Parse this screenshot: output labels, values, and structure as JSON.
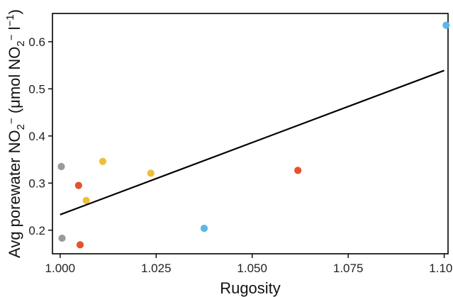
{
  "chart_data": {
    "type": "scatter",
    "title": "",
    "xlabel": "Rugosity",
    "ylabel_parts": {
      "prefix": "Avg porewater NO",
      "sub1": "2",
      "sup1": "−",
      "middle": " (μmol NO",
      "sub2": "2",
      "sup2": "−",
      "tail": " l",
      "sup3": "−1",
      "suffix": ")"
    },
    "xlim": [
      0.998,
      1.101
    ],
    "ylim": [
      0.15,
      0.66
    ],
    "xticks": [
      1.0,
      1.025,
      1.05,
      1.075,
      1.1
    ],
    "xtick_labels": [
      "1.000",
      "1.025",
      "1.050",
      "1.075",
      "1.100"
    ],
    "yticks": [
      0.2,
      0.3,
      0.4,
      0.5,
      0.6
    ],
    "ytick_labels": [
      "0.2",
      "0.3",
      "0.4",
      "0.5",
      "0.6"
    ],
    "grid": false,
    "legend": "none",
    "colors": {
      "gray": "#9a9a9a",
      "red": "#e4522f",
      "yellow": "#efbe3a",
      "blue": "#5bb7e7",
      "line": "#000000",
      "axis": "#000000"
    },
    "points": [
      {
        "x": 1.0003,
        "y": 0.335,
        "color": "gray"
      },
      {
        "x": 1.0005,
        "y": 0.183,
        "color": "gray"
      },
      {
        "x": 1.0048,
        "y": 0.295,
        "color": "red"
      },
      {
        "x": 1.0052,
        "y": 0.169,
        "color": "red"
      },
      {
        "x": 1.0619,
        "y": 0.327,
        "color": "red"
      },
      {
        "x": 1.0068,
        "y": 0.263,
        "color": "yellow"
      },
      {
        "x": 1.0111,
        "y": 0.346,
        "color": "yellow"
      },
      {
        "x": 1.0236,
        "y": 0.321,
        "color": "yellow"
      },
      {
        "x": 1.0375,
        "y": 0.204,
        "color": "blue"
      },
      {
        "x": 1.1005,
        "y": 0.635,
        "color": "blue"
      }
    ],
    "fit_line": {
      "x": [
        1.0,
        1.1
      ],
      "y": [
        0.233,
        0.539
      ]
    }
  }
}
